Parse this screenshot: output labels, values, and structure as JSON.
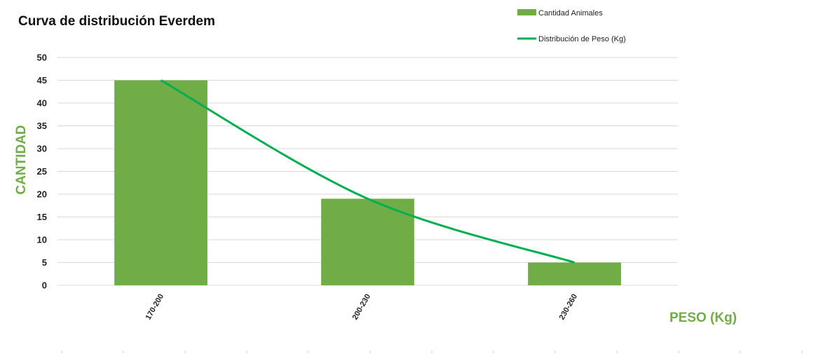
{
  "colors": {
    "bar": "#70ad47",
    "line": "#00b050",
    "axis_title": "#70ad47",
    "grid": "#d9d9d9"
  },
  "chart_data": {
    "type": "bar",
    "title": "Curva de distribución Everdem",
    "xlabel": "PESO (Kg)",
    "ylabel": "CANTIDAD",
    "categories": [
      "170-200",
      "200-230",
      "230-260"
    ],
    "ylim": [
      0,
      50
    ],
    "yticks": [
      0,
      5,
      10,
      15,
      20,
      25,
      30,
      35,
      40,
      45,
      50
    ],
    "grid": true,
    "legend_position": "top-right",
    "series": [
      {
        "name": "Cantidad Animales",
        "kind": "bar",
        "values": [
          45,
          19,
          5
        ]
      },
      {
        "name": "Distribución de Peso (Kg)",
        "kind": "smooth-line",
        "values": [
          45,
          19,
          5
        ]
      }
    ]
  }
}
